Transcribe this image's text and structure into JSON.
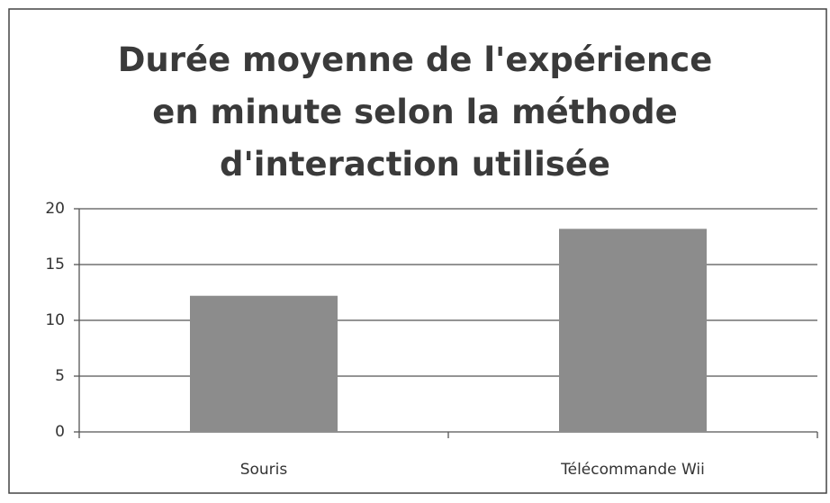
{
  "chart_data": {
    "type": "bar",
    "title": "Durée moyenne de l'expérience en minute selon la méthode d'interaction utilisée",
    "categories": [
      "Souris",
      "Télécommande Wii"
    ],
    "values": [
      12.2,
      18.2
    ],
    "color": "#8c8c8c",
    "ylim": [
      0,
      20
    ],
    "yticks": [
      0,
      5,
      10,
      15,
      20
    ],
    "grid": true
  }
}
